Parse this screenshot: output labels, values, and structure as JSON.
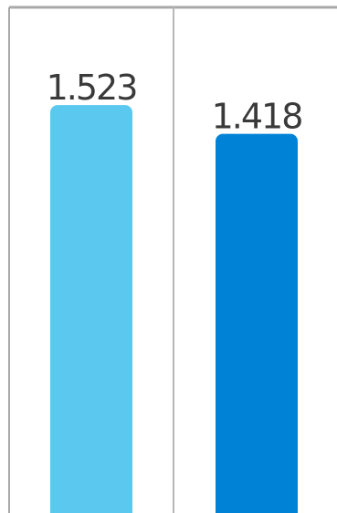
{
  "chart_data": {
    "type": "bar",
    "categories": [
      "",
      ""
    ],
    "values": [
      1.523,
      1.418
    ],
    "data_labels": [
      "1.523",
      "1.418"
    ],
    "colors": [
      "#5bc8f0",
      "#0083d6"
    ],
    "ylim": [
      0,
      1.6
    ],
    "title": "",
    "xlabel": "",
    "ylabel": "",
    "grid": false,
    "legend": "none"
  },
  "colors": {
    "axis": "#a8a8a8",
    "label": "#3a3a3a"
  }
}
